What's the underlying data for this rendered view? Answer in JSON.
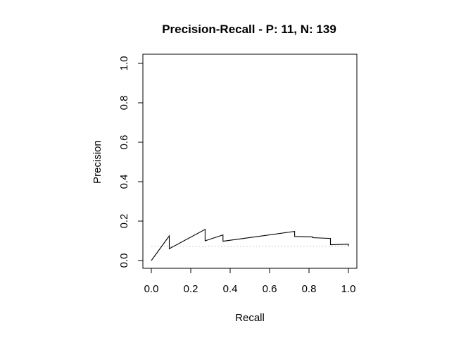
{
  "chart_data": {
    "type": "line",
    "title": "Precision-Recall - P: 11, N: 139",
    "xlabel": "Recall",
    "ylabel": "Precision",
    "xlim": [
      0,
      1
    ],
    "ylim": [
      0,
      1
    ],
    "xticks": [
      "0.0",
      "0.2",
      "0.4",
      "0.6",
      "0.8",
      "1.0"
    ],
    "yticks": [
      "0.0",
      "0.2",
      "0.4",
      "0.6",
      "0.8",
      "1.0"
    ],
    "grid": false,
    "series": [
      {
        "values": [
          [
            0.0,
            0.0
          ],
          [
            0.0909,
            0.125
          ],
          [
            0.0909,
            0.06
          ],
          [
            0.2727,
            0.158
          ],
          [
            0.2727,
            0.1
          ],
          [
            0.3636,
            0.13
          ],
          [
            0.3636,
            0.098
          ],
          [
            0.7273,
            0.148
          ],
          [
            0.7273,
            0.122
          ],
          [
            0.8182,
            0.12
          ],
          [
            0.8182,
            0.116
          ],
          [
            0.9091,
            0.112
          ],
          [
            0.9091,
            0.08
          ],
          [
            1.0,
            0.083
          ],
          [
            1.0,
            0.073
          ]
        ],
        "color": "#000000"
      }
    ],
    "baseline": {
      "y": 0.0733,
      "style": "dotted",
      "color": "#bbbbbb"
    }
  }
}
